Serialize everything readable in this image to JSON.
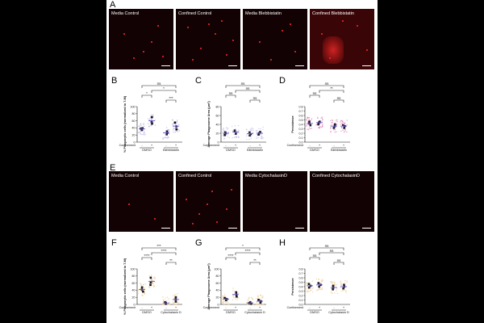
{
  "panels": {
    "A": {
      "letter": "A",
      "tiles": [
        {
          "label": "Media Control",
          "cells": [
            [
              18,
              30
            ],
            [
              42,
              52
            ],
            [
              60,
              20
            ],
            [
              30,
              60
            ],
            [
              66,
              58
            ],
            [
              52,
              40
            ]
          ]
        },
        {
          "label": "Confined Control",
          "cells": [
            [
              14,
              22
            ],
            [
              30,
              48
            ],
            [
              48,
              30
            ],
            [
              62,
              56
            ],
            [
              20,
              62
            ],
            [
              56,
              14
            ],
            [
              40,
              18
            ],
            [
              70,
              38
            ]
          ]
        },
        {
          "label": "Media Blebbistatin",
          "cells": [
            [
              20,
              40
            ],
            [
              48,
              26
            ],
            [
              64,
              52
            ],
            [
              34,
              62
            ],
            [
              58,
              18
            ]
          ]
        },
        {
          "label": "Confined Blebbistatin",
          "cells": [
            [
              14,
              30
            ],
            [
              58,
              20
            ],
            [
              70,
              50
            ],
            [
              40,
              14
            ],
            [
              24,
              60
            ]
          ]
        }
      ]
    },
    "E": {
      "letter": "E",
      "tiles": [
        {
          "label": "Media Control",
          "cells": [
            [
              24,
              40
            ],
            [
              56,
              58
            ]
          ]
        },
        {
          "label": "Confined Control",
          "cells": [
            [
              12,
              34
            ],
            [
              28,
              52
            ],
            [
              44,
              24
            ],
            [
              62,
              46
            ],
            [
              20,
              64
            ],
            [
              50,
              62
            ],
            [
              38,
              40
            ],
            [
              68,
              22
            ]
          ]
        },
        {
          "label": "Media CytochalasinD",
          "cells": []
        },
        {
          "label": "Confined CytochalasinD",
          "cells": []
        }
      ]
    },
    "B": {
      "letter": "B",
      "ylabel": "% Phagocytic cells (normalized to 7-M)",
      "yticks": [
        "0",
        "20",
        "40",
        "60",
        "80",
        "100"
      ],
      "ymax": 100,
      "group_labels": [
        "DMSO",
        "Blebbistatin"
      ],
      "confinement_label": "Confinement",
      "confinement_marks": [
        "-",
        "+",
        "-",
        "+"
      ],
      "sig": [
        {
          "from": 0,
          "to": 3,
          "label": "ns"
        },
        {
          "from": 1,
          "to": 3,
          "label": "*"
        },
        {
          "from": 0,
          "to": 1,
          "label": "*"
        },
        {
          "from": 2,
          "to": 3,
          "label": "***"
        }
      ],
      "means": [
        37,
        60,
        26,
        45
      ],
      "points": [
        [
          34,
          38,
          39
        ],
        [
          52,
          58,
          70
        ],
        [
          22,
          26,
          30
        ],
        [
          36,
          44,
          55
        ]
      ],
      "scatter_color": "#b3aee0",
      "mean_color": "#6a5acd"
    },
    "C": {
      "letter": "C",
      "ylabel": "Average Phagosome Area (μm²)",
      "yticks": [
        "0",
        "20",
        "40",
        "60",
        "80"
      ],
      "ymax": 80,
      "group_labels": [
        "DMSO",
        "Blebbistatin"
      ],
      "confinement_label": "Confinement",
      "confinement_marks": [
        "-",
        "+",
        "-",
        "+"
      ],
      "sig": [
        {
          "from": 0,
          "to": 3,
          "label": "ns"
        },
        {
          "from": 1,
          "to": 3,
          "label": "ns"
        },
        {
          "from": 0,
          "to": 1,
          "label": "ns"
        },
        {
          "from": 2,
          "to": 3,
          "label": "ns"
        }
      ],
      "means": [
        20,
        23,
        19,
        20
      ],
      "points": [
        [
          16,
          20,
          22
        ],
        [
          19,
          24,
          26
        ],
        [
          15,
          18,
          22
        ],
        [
          17,
          20,
          23
        ]
      ],
      "scatter_color": "#c7c2ea",
      "mean_color": "#6a5acd"
    },
    "D": {
      "letter": "D",
      "ylabel": "Persistence",
      "yticks": [
        "0.0",
        "0.1",
        "0.2",
        "0.3",
        "0.4",
        "0.5",
        "0.6",
        "0.7",
        "0.8"
      ],
      "ymax": 0.8,
      "group_labels": [
        "DMSO",
        "Blebbistatin"
      ],
      "confinement_label": "Confinement",
      "confinement_marks": [
        "-",
        "+",
        "-",
        "+"
      ],
      "sig": [
        {
          "from": 0,
          "to": 3,
          "label": "ns"
        },
        {
          "from": 1,
          "to": 3,
          "label": "**"
        },
        {
          "from": 0,
          "to": 1,
          "label": "ns"
        },
        {
          "from": 2,
          "to": 3,
          "label": "ns"
        }
      ],
      "means": [
        0.42,
        0.44,
        0.36,
        0.36
      ],
      "points": [
        [
          0.38,
          0.42,
          0.46
        ],
        [
          0.4,
          0.44,
          0.46
        ],
        [
          0.32,
          0.36,
          0.4
        ],
        [
          0.32,
          0.36,
          0.38
        ]
      ],
      "scatter_color": "#e07ab8",
      "mean_color": "#6a5acd"
    },
    "F": {
      "letter": "F",
      "ylabel": "% Phagocytic cells (normalized to 7-M)",
      "yticks": [
        "0",
        "20",
        "40",
        "60",
        "80",
        "100"
      ],
      "ymax": 100,
      "group_labels": [
        "DMSO",
        "Cytochalasin D"
      ],
      "confinement_label": "Confinement",
      "confinement_marks": [
        "-",
        "+",
        "-",
        "+"
      ],
      "sig": [
        {
          "from": 0,
          "to": 3,
          "label": "***"
        },
        {
          "from": 1,
          "to": 3,
          "label": "****"
        },
        {
          "from": 0,
          "to": 1,
          "label": "****"
        },
        {
          "from": 2,
          "to": 3,
          "label": "**"
        }
      ],
      "means": [
        42,
        65,
        4,
        14
      ],
      "points": [
        [
          36,
          42,
          48
        ],
        [
          55,
          62,
          75
        ],
        [
          2,
          4,
          6
        ],
        [
          8,
          14,
          20
        ]
      ],
      "scatter_color": "#f2c98f",
      "mean_color": "#6a5acd"
    },
    "G": {
      "letter": "G",
      "ylabel": "Average Phagosome Area (μm²)",
      "yticks": [
        "0",
        "20",
        "40",
        "60",
        "80",
        "100"
      ],
      "ymax": 100,
      "group_labels": [
        "DMSO",
        "Cytochalasin D"
      ],
      "confinement_label": "Confinement",
      "confinement_marks": [
        "-",
        "+",
        "-",
        "+"
      ],
      "sig": [
        {
          "from": 0,
          "to": 3,
          "label": "*"
        },
        {
          "from": 1,
          "to": 3,
          "label": "****"
        },
        {
          "from": 0,
          "to": 1,
          "label": "****"
        },
        {
          "from": 2,
          "to": 3,
          "label": "**"
        }
      ],
      "means": [
        15,
        28,
        4,
        9
      ],
      "points": [
        [
          12,
          15,
          18
        ],
        [
          22,
          28,
          34
        ],
        [
          2,
          4,
          6
        ],
        [
          5,
          9,
          13
        ]
      ],
      "scatter_color": "#f2c98f",
      "mean_color": "#6a5acd"
    },
    "H": {
      "letter": "H",
      "ylabel": "Persistence",
      "yticks": [
        "0.0",
        "0.1",
        "0.2",
        "0.3",
        "0.4",
        "0.5",
        "0.6",
        "0.7",
        "0.8"
      ],
      "ymax": 0.8,
      "group_labels": [
        "DMSO",
        "Cytochalasin D"
      ],
      "confinement_label": "Confinement",
      "confinement_marks": [
        "-",
        "+",
        "-",
        "+"
      ],
      "sig": [
        {
          "from": 0,
          "to": 3,
          "label": "ns"
        },
        {
          "from": 1,
          "to": 3,
          "label": "ns"
        },
        {
          "from": 0,
          "to": 1,
          "label": "ns"
        },
        {
          "from": 2,
          "to": 3,
          "label": "ns"
        }
      ],
      "means": [
        0.42,
        0.44,
        0.38,
        0.4
      ],
      "points": [
        [
          0.38,
          0.42,
          0.46
        ],
        [
          0.4,
          0.44,
          0.48
        ],
        [
          0.34,
          0.38,
          0.42
        ],
        [
          0.36,
          0.4,
          0.44
        ]
      ],
      "scatter_color": "#f2c98f",
      "mean_color": "#6a5acd"
    }
  }
}
